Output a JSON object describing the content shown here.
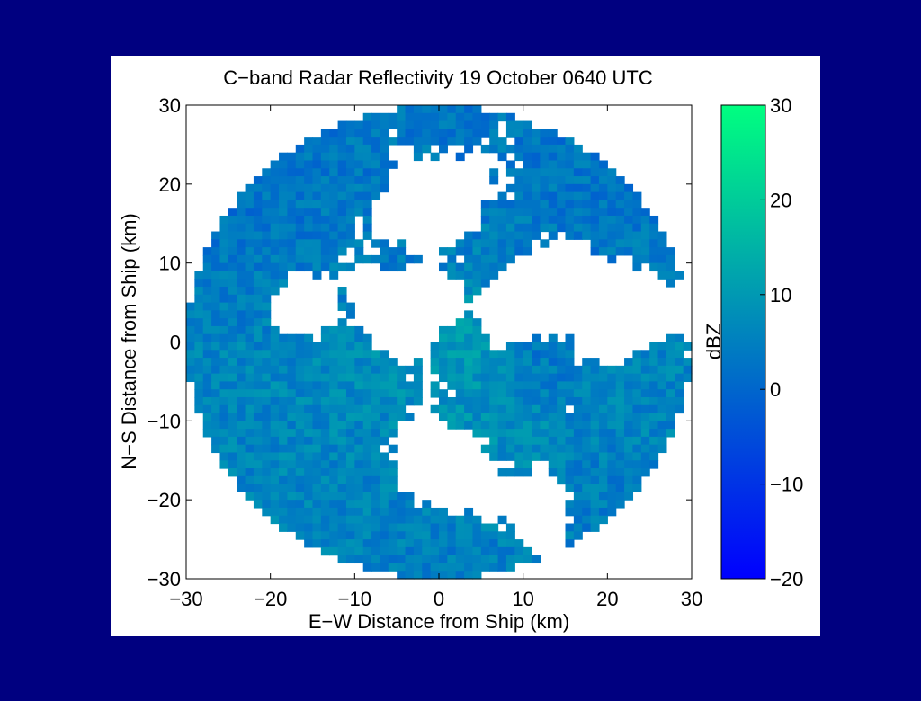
{
  "slide": {
    "background": "#000080"
  },
  "chart_data": {
    "type": "heatmap",
    "title": "C−band Radar Reflectivity 19 October 0640 UTC",
    "xlabel": "E−W Distance from Ship (km)",
    "ylabel": "N−S Distance from Ship (km)",
    "xlim": [
      -30,
      30
    ],
    "ylim": [
      -30,
      30
    ],
    "xticks": [
      "−30",
      "−20",
      "−10",
      "0",
      "10",
      "20",
      "30"
    ],
    "yticks": [
      "30",
      "20",
      "10",
      "0",
      "−10",
      "−20",
      "−30"
    ],
    "xtick_values": [
      -30,
      -20,
      -10,
      0,
      10,
      20,
      30
    ],
    "ytick_values": [
      30,
      20,
      10,
      0,
      -10,
      -20,
      -30
    ],
    "colorbar": {
      "label": "dBZ",
      "range": [
        -20,
        30
      ],
      "ticks": [
        "30",
        "20",
        "10",
        "0",
        "−10",
        "−20"
      ],
      "tick_values": [
        30,
        20,
        10,
        0,
        -10,
        -20
      ],
      "colors": [
        "#0000ff",
        "#00ff80"
      ]
    },
    "radar_range_km": 30,
    "echo_regions": [
      {
        "x": -18,
        "y": 18,
        "r": 9,
        "dbz": 2
      },
      {
        "x": -10,
        "y": 22,
        "r": 7,
        "dbz": 4
      },
      {
        "x": -24,
        "y": 8,
        "r": 6,
        "dbz": 3
      },
      {
        "x": -22,
        "y": -4,
        "r": 9,
        "dbz": 6
      },
      {
        "x": -12,
        "y": -4,
        "r": 9,
        "dbz": 8
      },
      {
        "x": -18,
        "y": -16,
        "r": 9,
        "dbz": 5
      },
      {
        "x": -10,
        "y": -22,
        "r": 8,
        "dbz": 6
      },
      {
        "x": 0,
        "y": -26,
        "r": 7,
        "dbz": 4
      },
      {
        "x": 6,
        "y": -12,
        "r": 7,
        "dbz": 9
      },
      {
        "x": 2,
        "y": 0,
        "r": 4,
        "dbz": 12
      },
      {
        "x": 6,
        "y": 14,
        "r": 8,
        "dbz": 5
      },
      {
        "x": 0,
        "y": 26,
        "r": 6,
        "dbz": 3
      },
      {
        "x": 16,
        "y": 20,
        "r": 6,
        "dbz": 2
      },
      {
        "x": 24,
        "y": 16,
        "r": 6,
        "dbz": 4
      },
      {
        "x": 12,
        "y": -2,
        "r": 4,
        "dbz": 2
      },
      {
        "x": 24,
        "y": -8,
        "r": 6,
        "dbz": 6
      },
      {
        "x": 18,
        "y": -18,
        "r": 6,
        "dbz": 4
      },
      {
        "x": -26,
        "y": 20,
        "r": 3,
        "dbz": 1
      },
      {
        "x": -5,
        "y": 10,
        "r": 3,
        "dbz": 2
      }
    ],
    "clear_regions": [
      {
        "x": 0,
        "y": 18,
        "r": 6
      },
      {
        "x": -4,
        "y": 4,
        "r": 5
      },
      {
        "x": 12,
        "y": 6,
        "r": 5
      },
      {
        "x": 2,
        "y": -16,
        "r": 5
      },
      {
        "x": 20,
        "y": 4,
        "r": 4
      },
      {
        "x": -16,
        "y": 4,
        "r": 3
      },
      {
        "x": 12,
        "y": -20,
        "r": 3
      }
    ]
  }
}
